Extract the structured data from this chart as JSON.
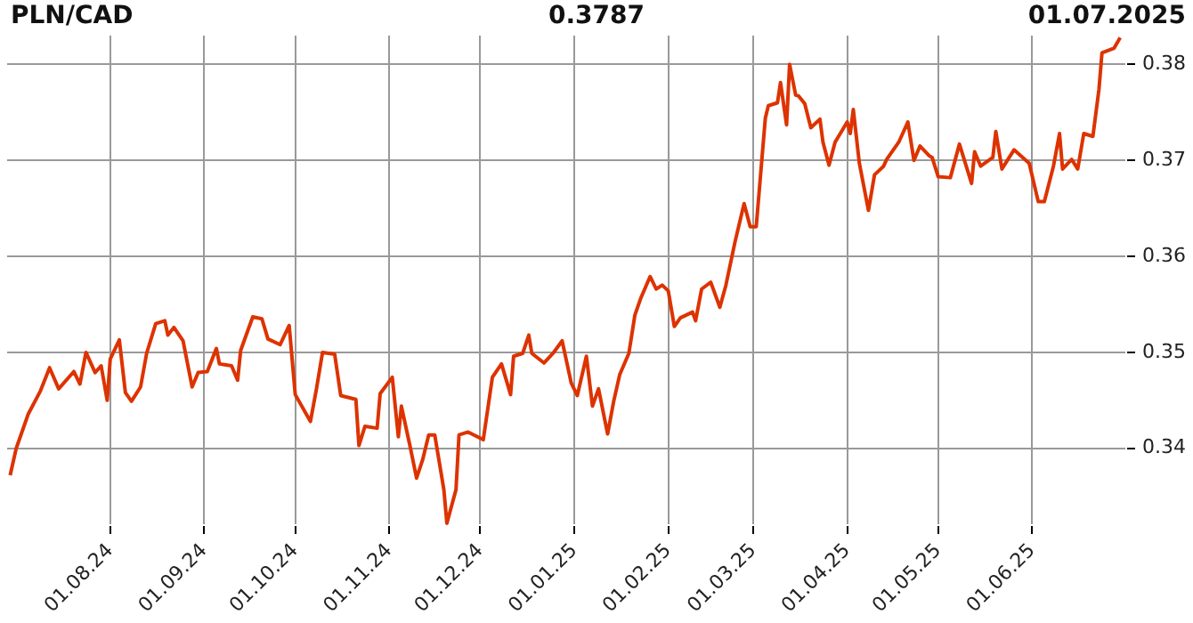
{
  "chart_data": {
    "type": "line",
    "title": "PLN/CAD",
    "annotations": [
      "0.3787",
      "01.07.2025"
    ],
    "x": [
      "2024-06-29",
      "2024-07-01",
      "2024-07-05",
      "2024-07-09",
      "2024-07-12",
      "2024-07-15",
      "2024-07-20",
      "2024-07-22",
      "2024-07-24",
      "2024-07-27",
      "2024-07-29",
      "2024-07-31",
      "2024-08-01",
      "2024-08-04",
      "2024-08-06",
      "2024-08-08",
      "2024-08-11",
      "2024-08-13",
      "2024-08-16",
      "2024-08-19",
      "2024-08-20",
      "2024-08-22",
      "2024-08-25",
      "2024-08-28",
      "2024-08-30",
      "2024-09-02",
      "2024-09-05",
      "2024-09-06",
      "2024-09-10",
      "2024-09-12",
      "2024-09-13",
      "2024-09-17",
      "2024-09-20",
      "2024-09-22",
      "2024-09-26",
      "2024-09-29",
      "2024-10-01",
      "2024-10-06",
      "2024-10-08",
      "2024-10-10",
      "2024-10-14",
      "2024-10-16",
      "2024-10-21",
      "2024-10-22",
      "2024-10-24",
      "2024-10-28",
      "2024-10-29",
      "2024-11-02",
      "2024-11-04",
      "2024-11-05",
      "2024-11-08",
      "2024-11-10",
      "2024-11-12",
      "2024-11-14",
      "2024-11-16",
      "2024-11-19",
      "2024-11-20",
      "2024-11-23",
      "2024-11-24",
      "2024-11-27",
      "2024-12-02",
      "2024-12-05",
      "2024-12-08",
      "2024-12-11",
      "2024-12-12",
      "2024-12-15",
      "2024-12-17",
      "2024-12-18",
      "2024-12-22",
      "2024-12-25",
      "2024-12-28",
      "2024-12-31",
      "2025-01-02",
      "2025-01-05",
      "2025-01-07",
      "2025-01-09",
      "2025-01-12",
      "2025-01-14",
      "2025-01-16",
      "2025-01-19",
      "2025-01-21",
      "2025-01-23",
      "2025-01-26",
      "2025-01-28",
      "2025-01-30",
      "2025-02-01",
      "2025-02-03",
      "2025-02-05",
      "2025-02-09",
      "2025-02-10",
      "2025-02-12",
      "2025-02-15",
      "2025-02-18",
      "2025-02-20",
      "2025-02-23",
      "2025-02-26",
      "2025-02-28",
      "2025-03-02",
      "2025-03-05",
      "2025-03-06",
      "2025-03-09",
      "2025-03-10",
      "2025-03-12",
      "2025-03-13",
      "2025-03-15",
      "2025-03-16",
      "2025-03-18",
      "2025-03-20",
      "2025-03-23",
      "2025-03-24",
      "2025-03-26",
      "2025-03-28",
      "2025-04-01",
      "2025-04-02",
      "2025-04-03",
      "2025-04-05",
      "2025-04-08",
      "2025-04-10",
      "2025-04-13",
      "2025-04-14",
      "2025-04-18",
      "2025-04-21",
      "2025-04-23",
      "2025-04-25",
      "2025-04-28",
      "2025-04-29",
      "2025-05-01",
      "2025-05-05",
      "2025-05-08",
      "2025-05-12",
      "2025-05-13",
      "2025-05-15",
      "2025-05-19",
      "2025-05-20",
      "2025-05-22",
      "2025-05-26",
      "2025-05-31",
      "2025-06-03",
      "2025-06-05",
      "2025-06-08",
      "2025-06-10",
      "2025-06-11",
      "2025-06-14",
      "2025-06-16",
      "2025-06-18",
      "2025-06-21",
      "2025-06-23",
      "2025-06-24",
      "2025-06-28",
      "2025-06-30"
    ],
    "series": [
      {
        "color": "#dd3300",
        "values": [
          0.3372,
          0.34,
          0.3436,
          0.346,
          0.3484,
          0.3462,
          0.348,
          0.3467,
          0.35,
          0.3479,
          0.3486,
          0.345,
          0.3493,
          0.3513,
          0.3458,
          0.3449,
          0.3464,
          0.3499,
          0.353,
          0.3533,
          0.3518,
          0.3526,
          0.3512,
          0.3464,
          0.3479,
          0.348,
          0.3504,
          0.3488,
          0.3486,
          0.3471,
          0.3502,
          0.3537,
          0.3535,
          0.3514,
          0.3508,
          0.3528,
          0.3456,
          0.3428,
          0.3462,
          0.35,
          0.3498,
          0.3455,
          0.3451,
          0.3403,
          0.3423,
          0.3421,
          0.3457,
          0.3474,
          0.3412,
          0.3444,
          0.34,
          0.3369,
          0.3388,
          0.3414,
          0.3414,
          0.3357,
          0.3322,
          0.3357,
          0.3414,
          0.3417,
          0.3409,
          0.3474,
          0.3488,
          0.3456,
          0.3496,
          0.3499,
          0.3518,
          0.3499,
          0.3489,
          0.3499,
          0.3512,
          0.3468,
          0.3455,
          0.3496,
          0.3444,
          0.3462,
          0.3415,
          0.3449,
          0.3477,
          0.3499,
          0.3539,
          0.3557,
          0.3579,
          0.3566,
          0.357,
          0.3564,
          0.3527,
          0.3536,
          0.3542,
          0.3533,
          0.3566,
          0.3573,
          0.3547,
          0.357,
          0.3615,
          0.3655,
          0.3631,
          0.3631,
          0.3744,
          0.3757,
          0.376,
          0.3781,
          0.3737,
          0.38,
          0.3768,
          0.3767,
          0.3759,
          0.3734,
          0.3743,
          0.3719,
          0.3695,
          0.3719,
          0.374,
          0.3728,
          0.3753,
          0.3697,
          0.3648,
          0.3685,
          0.3694,
          0.3701,
          0.3719,
          0.374,
          0.37,
          0.3715,
          0.3705,
          0.3703,
          0.3683,
          0.3682,
          0.3717,
          0.3676,
          0.3709,
          0.3694,
          0.3703,
          0.373,
          0.3691,
          0.3711,
          0.3697,
          0.3657,
          0.3657,
          0.3694,
          0.3728,
          0.3691,
          0.3701,
          0.3691,
          0.3728,
          0.3725,
          0.3774,
          0.3812,
          0.3817,
          0.3828
        ]
      }
    ],
    "xlim": [
      "2024-06-28",
      "2025-07-02"
    ],
    "xticks": [
      {
        "value": "2024-08-01",
        "label": "01.08.24"
      },
      {
        "value": "2024-09-01",
        "label": "01.09.24"
      },
      {
        "value": "2024-10-01",
        "label": "01.10.24"
      },
      {
        "value": "2024-11-01",
        "label": "01.11.24"
      },
      {
        "value": "2024-12-01",
        "label": "01.12.24"
      },
      {
        "value": "2025-01-01",
        "label": "01.01.25"
      },
      {
        "value": "2025-02-01",
        "label": "01.02.25"
      },
      {
        "value": "2025-03-01",
        "label": "01.03.25"
      },
      {
        "value": "2025-04-01",
        "label": "01.04.25"
      },
      {
        "value": "2025-05-01",
        "label": "01.05.25"
      },
      {
        "value": "2025-06-01",
        "label": "01.06.25"
      }
    ],
    "ylim": [
      0.332,
      0.383
    ],
    "yticks": [
      0.34,
      0.35,
      0.36,
      0.37,
      0.38
    ],
    "grid": true,
    "marker": "none",
    "line_style": "solid"
  }
}
